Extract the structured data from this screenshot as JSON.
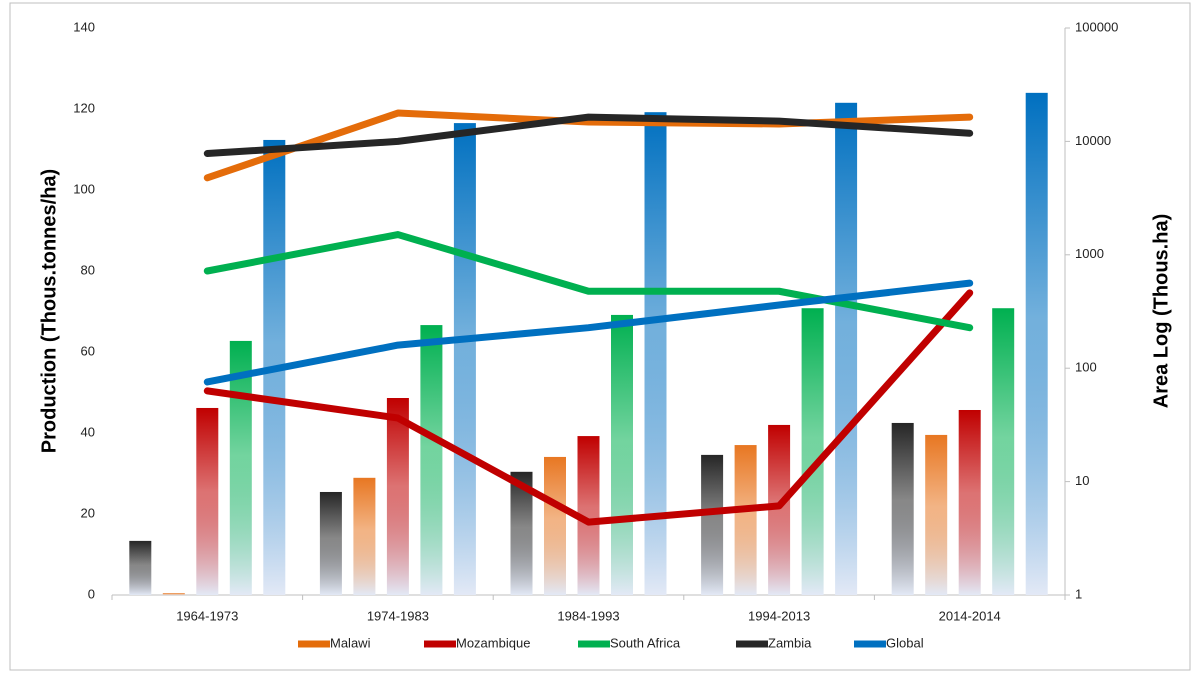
{
  "chart_data": {
    "type": "bar-line-combo",
    "categories": [
      "1964-1973",
      "1974-1983",
      "1984-1993",
      "1994-2013",
      "2014-2014"
    ],
    "y_label": "Production  (Thous.tonnes/ha)",
    "y2_label": "Area  Log (Thous.ha)",
    "ylim": [
      0,
      140
    ],
    "yticks": [
      0,
      20,
      40,
      60,
      80,
      100,
      120,
      140
    ],
    "y2lim": [
      1,
      100000
    ],
    "y2ticks": [
      1,
      10,
      100,
      1000,
      10000,
      100000
    ],
    "y2log": true,
    "bar_series": [
      {
        "color": "#262626",
        "axis": "y2",
        "values": [
          3.0,
          8.1,
          12.2,
          17.2,
          32.9
        ]
      },
      {
        "color": "#e87722",
        "axis": "y2",
        "values": [
          1.04,
          10.8,
          16.5,
          21,
          25.8
        ]
      },
      {
        "color": "#c00000",
        "axis": "y2",
        "values": [
          44.6,
          54.6,
          25.2,
          31.6,
          42.8
        ]
      },
      {
        "color": "#00b050",
        "axis": "y2",
        "values": [
          174,
          240,
          295,
          338,
          338
        ]
      },
      {
        "color": "#0070c0",
        "axis": "y2",
        "values": [
          10300,
          14500,
          18100,
          21900,
          26800
        ]
      }
    ],
    "series": [
      {
        "name": "Malawi",
        "color": "#e46c0a",
        "values": [
          103,
          119,
          116.8,
          116.3,
          118
        ]
      },
      {
        "name": "Mozambique",
        "color": "#c00000",
        "values": [
          50.4,
          43.7,
          18,
          22,
          74.6
        ]
      },
      {
        "name": "South Africa",
        "color": "#00b050",
        "values": [
          80,
          89,
          75,
          75,
          66
        ]
      },
      {
        "name": "Zambia",
        "color": "#262626",
        "values": [
          109,
          112,
          118,
          117,
          114
        ]
      },
      {
        "name": "Global",
        "color": "#0070c0",
        "values": [
          52.6,
          61.7,
          66,
          71.6,
          77
        ]
      }
    ]
  }
}
